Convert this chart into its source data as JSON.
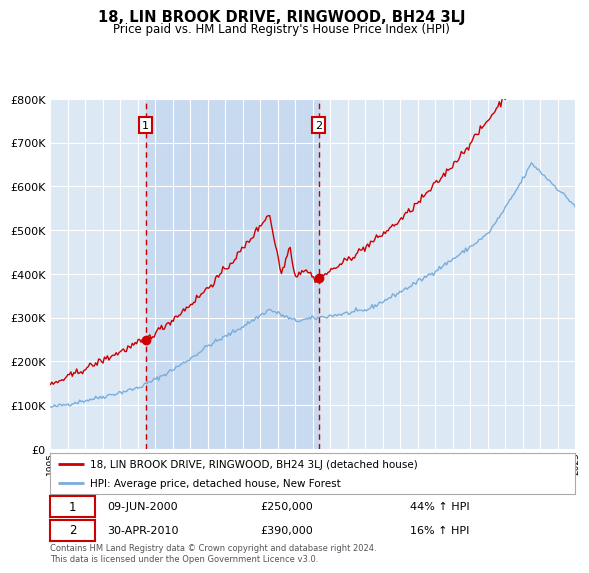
{
  "title": "18, LIN BROOK DRIVE, RINGWOOD, BH24 3LJ",
  "subtitle": "Price paid vs. HM Land Registry's House Price Index (HPI)",
  "legend_line1": "18, LIN BROOK DRIVE, RINGWOOD, BH24 3LJ (detached house)",
  "legend_line2": "HPI: Average price, detached house, New Forest",
  "transaction1_date": "09-JUN-2000",
  "transaction1_price": "£250,000",
  "transaction1_hpi": "44% ↑ HPI",
  "transaction1_year": 2000.44,
  "transaction1_value": 250000,
  "transaction2_date": "30-APR-2010",
  "transaction2_price": "£390,000",
  "transaction2_hpi": "16% ↑ HPI",
  "transaction2_year": 2010.33,
  "transaction2_value": 390000,
  "footer": "Contains HM Land Registry data © Crown copyright and database right 2024.\nThis data is licensed under the Open Government Licence v3.0.",
  "background_color": "#ffffff",
  "plot_bg_color": "#dce9f5",
  "shade_color": "#c8daf0",
  "grid_color": "#ffffff",
  "red_line_color": "#cc0000",
  "blue_line_color": "#7aadda",
  "dashed_line_color": "#cc0000",
  "marker_color": "#cc0000",
  "ylim": [
    0,
    800000
  ],
  "xlim_start": 1995,
  "xlim_end": 2025
}
